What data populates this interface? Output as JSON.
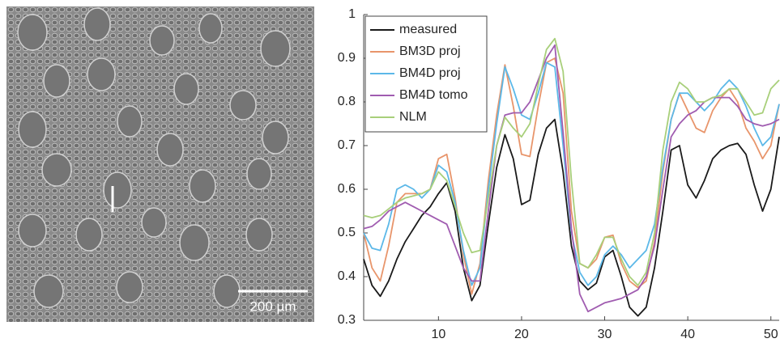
{
  "image": {
    "scale_bar": "200 µm"
  },
  "chart_data": {
    "type": "line",
    "x": [
      1,
      2,
      3,
      4,
      5,
      6,
      7,
      8,
      9,
      10,
      11,
      12,
      13,
      14,
      15,
      16,
      17,
      18,
      19,
      20,
      21,
      22,
      23,
      24,
      25,
      26,
      27,
      28,
      29,
      30,
      31,
      32,
      33,
      34,
      35,
      36,
      37,
      38,
      39,
      40,
      41,
      42,
      43,
      44,
      45,
      46,
      47,
      48,
      49,
      50,
      51
    ],
    "xlim": [
      1,
      51
    ],
    "xticks": [
      10,
      20,
      30,
      40,
      50
    ],
    "ylim": [
      0.3,
      1
    ],
    "yticks": [
      0.3,
      0.4,
      0.5,
      0.6,
      0.7,
      0.8,
      0.9,
      1
    ],
    "legend": "upper-left",
    "series": [
      {
        "name": "measured",
        "color": "#1a1a1a",
        "values": [
          0.44,
          0.38,
          0.355,
          0.39,
          0.44,
          0.48,
          0.51,
          0.54,
          0.56,
          0.59,
          0.615,
          0.55,
          0.42,
          0.345,
          0.38,
          0.52,
          0.65,
          0.725,
          0.67,
          0.565,
          0.575,
          0.68,
          0.74,
          0.76,
          0.64,
          0.47,
          0.39,
          0.37,
          0.385,
          0.445,
          0.46,
          0.4,
          0.33,
          0.31,
          0.33,
          0.42,
          0.55,
          0.69,
          0.7,
          0.61,
          0.58,
          0.62,
          0.67,
          0.69,
          0.7,
          0.705,
          0.68,
          0.61,
          0.55,
          0.6,
          0.72
        ]
      },
      {
        "name": "BM3D proj",
        "color": "#e8956b",
        "values": [
          0.5,
          0.42,
          0.39,
          0.47,
          0.57,
          0.59,
          0.59,
          0.59,
          0.6,
          0.67,
          0.68,
          0.58,
          0.45,
          0.36,
          0.43,
          0.62,
          0.77,
          0.885,
          0.79,
          0.68,
          0.675,
          0.79,
          0.89,
          0.9,
          0.82,
          0.55,
          0.43,
          0.42,
          0.44,
          0.49,
          0.495,
          0.43,
          0.39,
          0.375,
          0.39,
          0.48,
          0.64,
          0.76,
          0.82,
          0.78,
          0.74,
          0.73,
          0.78,
          0.81,
          0.83,
          0.8,
          0.74,
          0.71,
          0.67,
          0.7,
          0.795
        ]
      },
      {
        "name": "BM4D proj",
        "color": "#5cb8e8",
        "values": [
          0.5,
          0.465,
          0.46,
          0.52,
          0.6,
          0.61,
          0.6,
          0.58,
          0.6,
          0.655,
          0.64,
          0.57,
          0.46,
          0.38,
          0.42,
          0.6,
          0.75,
          0.88,
          0.83,
          0.77,
          0.76,
          0.82,
          0.89,
          0.88,
          0.7,
          0.5,
          0.41,
          0.38,
          0.4,
          0.45,
          0.47,
          0.45,
          0.42,
          0.44,
          0.46,
          0.52,
          0.65,
          0.76,
          0.82,
          0.82,
          0.8,
          0.78,
          0.8,
          0.83,
          0.85,
          0.83,
          0.79,
          0.74,
          0.7,
          0.72,
          0.795
        ]
      },
      {
        "name": "BM4D tomo",
        "color": "#a05cb0",
        "values": [
          0.51,
          0.515,
          0.53,
          0.55,
          0.56,
          0.57,
          0.56,
          0.55,
          0.54,
          0.53,
          0.52,
          0.47,
          0.42,
          0.39,
          0.39,
          0.55,
          0.7,
          0.77,
          0.775,
          0.775,
          0.8,
          0.85,
          0.9,
          0.93,
          0.73,
          0.51,
          0.36,
          0.32,
          0.33,
          0.34,
          0.345,
          0.35,
          0.36,
          0.37,
          0.4,
          0.47,
          0.6,
          0.72,
          0.75,
          0.77,
          0.78,
          0.8,
          0.81,
          0.81,
          0.81,
          0.79,
          0.76,
          0.75,
          0.745,
          0.75,
          0.76
        ]
      },
      {
        "name": "NLM",
        "color": "#a8cf7a",
        "values": [
          0.54,
          0.535,
          0.54,
          0.555,
          0.57,
          0.58,
          0.585,
          0.59,
          0.6,
          0.64,
          0.62,
          0.56,
          0.5,
          0.455,
          0.46,
          0.58,
          0.7,
          0.765,
          0.74,
          0.72,
          0.75,
          0.84,
          0.92,
          0.945,
          0.87,
          0.62,
          0.43,
          0.42,
          0.45,
          0.49,
          0.49,
          0.44,
          0.4,
          0.38,
          0.41,
          0.5,
          0.69,
          0.8,
          0.845,
          0.83,
          0.8,
          0.8,
          0.81,
          0.815,
          0.83,
          0.83,
          0.8,
          0.77,
          0.775,
          0.83,
          0.85
        ]
      }
    ]
  }
}
